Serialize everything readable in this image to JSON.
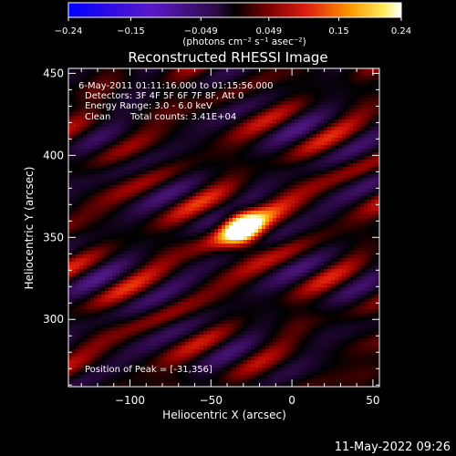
{
  "colorbar": {
    "tick_labels": [
      "-0.24",
      "-0.15",
      "-0.049",
      "0.049",
      "0.15",
      "0.24"
    ],
    "range": [
      -0.24,
      0.24
    ],
    "units": "(photons cm⁻² s⁻¹ asec⁻²)",
    "colormap": "blue-purple-black-red-orange-yellow-white"
  },
  "title": "Reconstructed RHESSI Image",
  "annotations": {
    "time_range": "6-May-2011 01:11:16.000 to 01:15:56.000",
    "detectors": "Detectors: 3F 4F 5F 6F 7F 8F, Att 0",
    "energy": "Energy Range: 3.0 - 6.0 keV",
    "algorithm": "Clean",
    "counts": "Total counts: 3.41E+04",
    "peak": "Position of Peak = [-31,356]"
  },
  "timestamp": "11-May-2022 09:26",
  "chart_data": {
    "type": "heatmap",
    "title": "Reconstructed RHESSI Image",
    "xlabel": "Heliocentric X (arcsec)",
    "ylabel": "Heliocentric Y (arcsec)",
    "xlim": [
      -138,
      54
    ],
    "ylim": [
      259,
      453
    ],
    "x_ticks": [
      -100,
      -50,
      0,
      50
    ],
    "y_ticks": [
      300,
      350,
      400,
      450
    ],
    "x_tick_labels": [
      "−100",
      "−50",
      "0",
      "50"
    ],
    "y_tick_labels": [
      "300",
      "350",
      "400",
      "450"
    ],
    "peak": {
      "x": -31,
      "y": 356,
      "value": 0.24
    },
    "grid": false
  }
}
